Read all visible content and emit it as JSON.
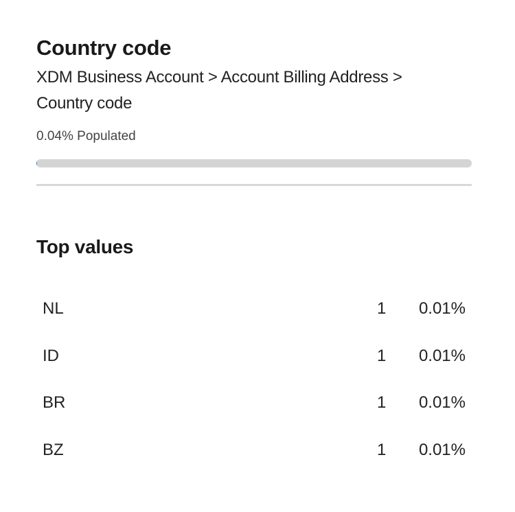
{
  "title": "Country code",
  "breadcrumb": "XDM Business Account > Account Billing Address > Country code",
  "populated": {
    "label": "0.04% Populated",
    "percent": 0.04
  },
  "top_values": {
    "heading": "Top values",
    "rows": [
      {
        "value": "NL",
        "count": "1",
        "percent": "0.01%"
      },
      {
        "value": "ID",
        "count": "1",
        "percent": "0.01%"
      },
      {
        "value": "BR",
        "count": "1",
        "percent": "0.01%"
      },
      {
        "value": "BZ",
        "count": "1",
        "percent": "0.01%"
      }
    ]
  }
}
